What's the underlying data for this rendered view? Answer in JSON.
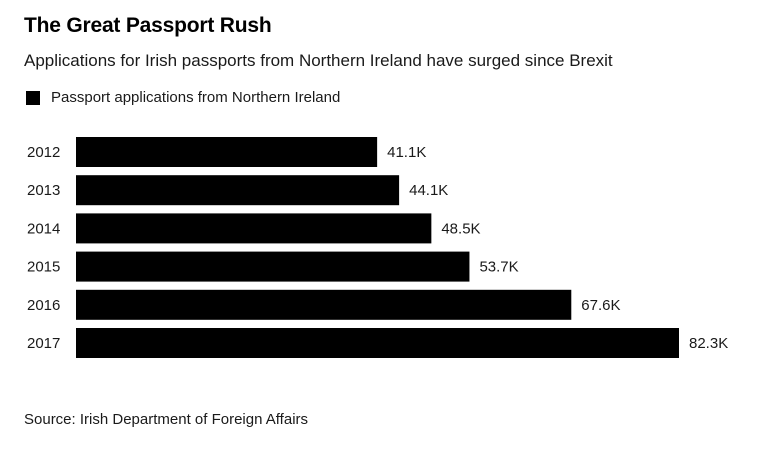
{
  "title": "The Great Passport Rush",
  "subtitle": "Applications for Irish passports from Northern Ireland have surged since Brexit",
  "source": "Source: Irish Department of Foreign Affairs",
  "chart_data": {
    "type": "bar",
    "orientation": "horizontal",
    "categories": [
      "2012",
      "2013",
      "2014",
      "2015",
      "2016",
      "2017"
    ],
    "series": [
      {
        "name": "Passport applications from Northern Ireland",
        "values": [
          41100,
          44100,
          48500,
          53700,
          67600,
          82300
        ],
        "labels": [
          "41.1K",
          "44.1K",
          "48.5K",
          "53.7K",
          "67.6K",
          "82.3K"
        ],
        "color": "#000000"
      }
    ],
    "xlim": [
      0,
      82300
    ],
    "grid": false,
    "legend": "top-left"
  }
}
